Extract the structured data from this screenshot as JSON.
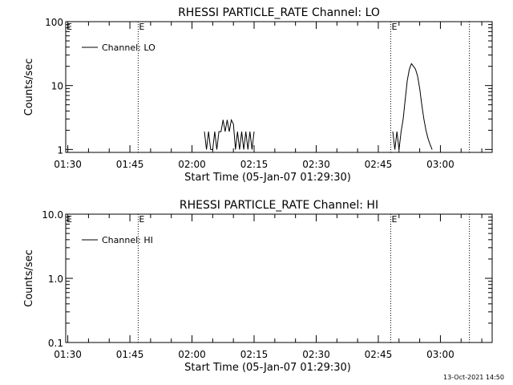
{
  "timestamp": "13-Oct-2021 14:50",
  "chart_data": [
    {
      "type": "line",
      "title": "RHESSI PARTICLE_RATE Channel: LO",
      "xlabel": "Start Time (05-Jan-07 01:29:30)",
      "ylabel": "Counts/sec",
      "y_scale": "log",
      "ylim": [
        0.9,
        100
      ],
      "x_ticks": [
        "01:30",
        "01:45",
        "02:00",
        "02:15",
        "02:30",
        "02:45",
        "03:00"
      ],
      "y_ticks": [
        "1",
        "10",
        "100"
      ],
      "legend": {
        "label": "Channel: LO",
        "placement": "top-left"
      },
      "markers": [
        {
          "time": "01:47",
          "label": "E"
        },
        {
          "time": "02:48",
          "label": "E"
        },
        {
          "time": "03:07",
          "label": ""
        }
      ],
      "series": [
        {
          "name": "Channel: LO",
          "x": [
            "02:03",
            "02:03:30",
            "02:04",
            "02:04:30",
            "02:05",
            "02:05:30",
            "02:06",
            "02:06:30",
            "02:07",
            "02:07:30",
            "02:08",
            "02:08:30",
            "02:09",
            "02:09:30",
            "02:10",
            "02:10:30",
            "02:11",
            "02:11:30",
            "02:12",
            "02:12:30",
            "02:13",
            "02:13:30",
            "02:14",
            "02:14:30",
            "02:15",
            "02:48:30",
            "02:49",
            "02:49:30",
            "02:50",
            "02:50:30",
            "02:51",
            "02:51:30",
            "02:52",
            "02:52:30",
            "02:53",
            "02:53:30",
            "02:54",
            "02:54:30",
            "02:55",
            "02:55:30",
            "02:56",
            "02:56:30",
            "02:57",
            "02:57:30",
            "02:58"
          ],
          "y": [
            1.9,
            1,
            1.9,
            1,
            1,
            1.9,
            1,
            1.9,
            1.9,
            2.9,
            1.9,
            2.9,
            1.9,
            2.9,
            2.5,
            1,
            1.9,
            1,
            1.9,
            1,
            1.9,
            1,
            1.9,
            1,
            1.9,
            1.9,
            1,
            1.9,
            1,
            1.9,
            3,
            6,
            12,
            18,
            22,
            20,
            18,
            14,
            9,
            5,
            3,
            2,
            1.5,
            1.2,
            1
          ]
        }
      ]
    },
    {
      "type": "line",
      "title": "RHESSI PARTICLE_RATE Channel: HI",
      "xlabel": "Start Time (05-Jan-07 01:29:30)",
      "ylabel": "Counts/sec",
      "y_scale": "log",
      "ylim": [
        0.1,
        10
      ],
      "x_ticks": [
        "01:30",
        "01:45",
        "02:00",
        "02:15",
        "02:30",
        "02:45",
        "03:00"
      ],
      "y_ticks": [
        "0.1",
        "1.0",
        "10.0"
      ],
      "legend": {
        "label": "Channel: HI",
        "placement": "top-left"
      },
      "markers": [
        {
          "time": "01:47",
          "label": "E"
        },
        {
          "time": "02:48",
          "label": "E"
        },
        {
          "time": "03:07",
          "label": ""
        }
      ],
      "series": [
        {
          "name": "Channel: HI",
          "x": [],
          "y": []
        }
      ]
    }
  ]
}
